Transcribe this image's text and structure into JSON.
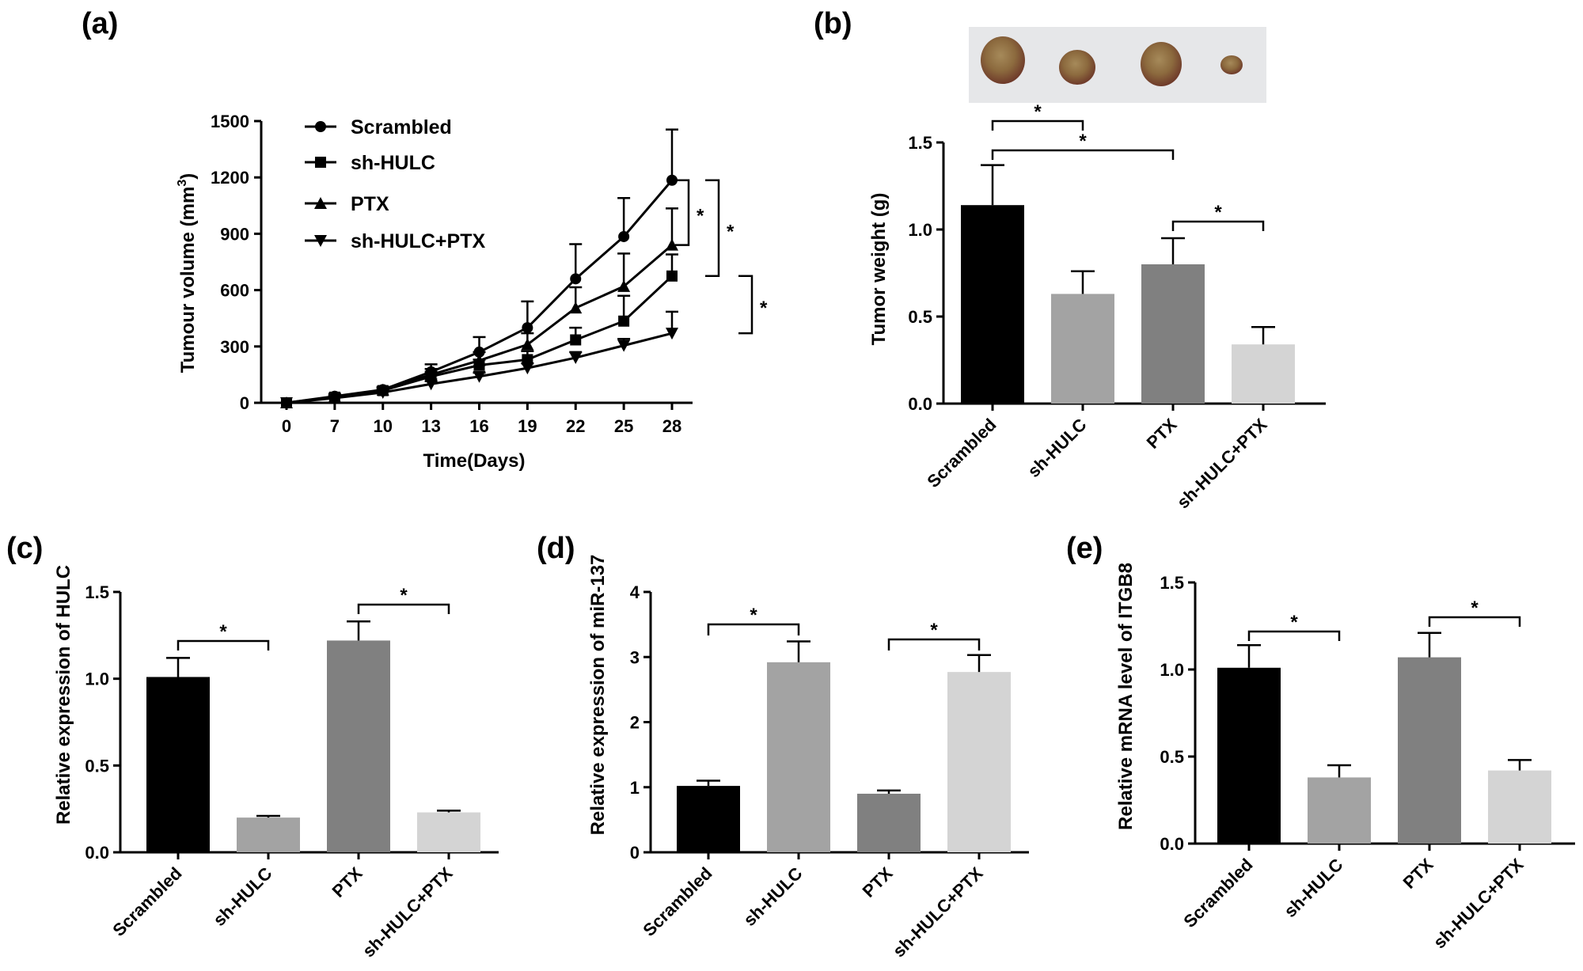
{
  "chart_data": [
    {
      "panel": "(a)",
      "type": "line",
      "xlabel": "Time(Days)",
      "ylabel": "Tumour volume (mm",
      "ylabel_sup": "3",
      "ylabel_close": ")",
      "x": [
        0,
        7,
        10,
        13,
        16,
        19,
        22,
        25,
        28
      ],
      "x_ticks": [
        "0",
        "7",
        "10",
        "13",
        "16",
        "19",
        "22",
        "25",
        "28"
      ],
      "y_ticks": [
        "0",
        "300",
        "600",
        "900",
        "1200",
        "1500"
      ],
      "ylim": [
        0,
        1500
      ],
      "series": [
        {
          "name": "Scrambled",
          "marker": "circle",
          "values": [
            0,
            35,
            70,
            165,
            270,
            400,
            660,
            885,
            1185
          ],
          "errors": [
            0,
            10,
            15,
            40,
            80,
            140,
            185,
            205,
            270
          ]
        },
        {
          "name": "sh-HULC",
          "marker": "square",
          "values": [
            0,
            30,
            65,
            140,
            200,
            230,
            335,
            435,
            675
          ],
          "errors": [
            0,
            8,
            12,
            25,
            30,
            45,
            65,
            135,
            115
          ]
        },
        {
          "name": "PTX",
          "marker": "triangle-up",
          "values": [
            0,
            32,
            68,
            150,
            225,
            310,
            505,
            620,
            840
          ],
          "errors": [
            0,
            8,
            12,
            30,
            45,
            60,
            110,
            175,
            195
          ]
        },
        {
          "name": "sh-HULC+PTX",
          "marker": "triangle-down",
          "values": [
            0,
            25,
            55,
            100,
            140,
            185,
            240,
            305,
            370
          ],
          "errors": [
            0,
            5,
            10,
            15,
            20,
            25,
            30,
            35,
            115
          ]
        }
      ],
      "significance": [
        {
          "label": "*",
          "between": [
            "Scrambled",
            "PTX"
          ]
        },
        {
          "label": "*",
          "between": [
            "Scrambled",
            "sh-HULC"
          ]
        },
        {
          "label": "*",
          "between": [
            "sh-HULC",
            "sh-HULC+PTX"
          ]
        }
      ]
    },
    {
      "panel": "(b)",
      "type": "bar",
      "ylabel": "Tumor weight (g)",
      "categories": [
        "Scrambled",
        "sh-HULC",
        "PTX",
        "sh-HULC+PTX"
      ],
      "values": [
        1.14,
        0.63,
        0.8,
        0.34
      ],
      "errors": [
        0.23,
        0.13,
        0.15,
        0.1
      ],
      "colors": [
        "#000000",
        "#a3a3a3",
        "#808080",
        "#d4d4d4"
      ],
      "ylim": [
        0,
        1.5
      ],
      "y_ticks": [
        "0.0",
        "0.5",
        "1.0",
        "1.5"
      ],
      "significance": [
        {
          "label": "*",
          "between": [
            "Scrambled",
            "sh-HULC"
          ]
        },
        {
          "label": "*",
          "between": [
            "Scrambled",
            "PTX"
          ]
        },
        {
          "label": "*",
          "between": [
            "PTX",
            "sh-HULC+PTX"
          ]
        }
      ]
    },
    {
      "panel": "(c)",
      "type": "bar",
      "ylabel": "Relative expression of HULC",
      "categories": [
        "Scrambled",
        "sh-HULC",
        "PTX",
        "sh-HULC+PTX"
      ],
      "values": [
        1.01,
        0.2,
        1.22,
        0.23
      ],
      "errors": [
        0.11,
        0.01,
        0.11,
        0.01
      ],
      "colors": [
        "#000000",
        "#a3a3a3",
        "#808080",
        "#d4d4d4"
      ],
      "ylim": [
        0,
        1.5
      ],
      "y_ticks": [
        "0.0",
        "0.5",
        "1.0",
        "1.5"
      ],
      "significance": [
        {
          "label": "*",
          "between": [
            "Scrambled",
            "sh-HULC"
          ]
        },
        {
          "label": "*",
          "between": [
            "PTX",
            "sh-HULC+PTX"
          ]
        }
      ]
    },
    {
      "panel": "(d)",
      "type": "bar",
      "ylabel": "Relative expression of miR-137",
      "categories": [
        "Scrambled",
        "sh-HULC",
        "PTX",
        "sh-HULC+PTX"
      ],
      "values": [
        1.02,
        2.92,
        0.9,
        2.77
      ],
      "errors": [
        0.08,
        0.32,
        0.05,
        0.26
      ],
      "colors": [
        "#000000",
        "#a3a3a3",
        "#808080",
        "#d4d4d4"
      ],
      "ylim": [
        0,
        4
      ],
      "y_ticks": [
        "0",
        "1",
        "2",
        "3",
        "4"
      ],
      "significance": [
        {
          "label": "*",
          "between": [
            "Scrambled",
            "sh-HULC"
          ]
        },
        {
          "label": "*",
          "between": [
            "PTX",
            "sh-HULC+PTX"
          ]
        }
      ]
    },
    {
      "panel": "(e)",
      "type": "bar",
      "ylabel": "Relative mRNA level of ITGB8",
      "categories": [
        "Scrambled",
        "sh-HULC",
        "PTX",
        "sh-HULC+PTX"
      ],
      "values": [
        1.01,
        0.38,
        1.07,
        0.42
      ],
      "errors": [
        0.13,
        0.07,
        0.14,
        0.06
      ],
      "colors": [
        "#000000",
        "#a3a3a3",
        "#808080",
        "#d4d4d4"
      ],
      "ylim": [
        0,
        1.5
      ],
      "y_ticks": [
        "0.0",
        "0.5",
        "1.0",
        "1.5"
      ],
      "significance": [
        {
          "label": "*",
          "between": [
            "Scrambled",
            "sh-HULC"
          ]
        },
        {
          "label": "*",
          "between": [
            "PTX",
            "sh-HULC+PTX"
          ]
        }
      ]
    }
  ]
}
